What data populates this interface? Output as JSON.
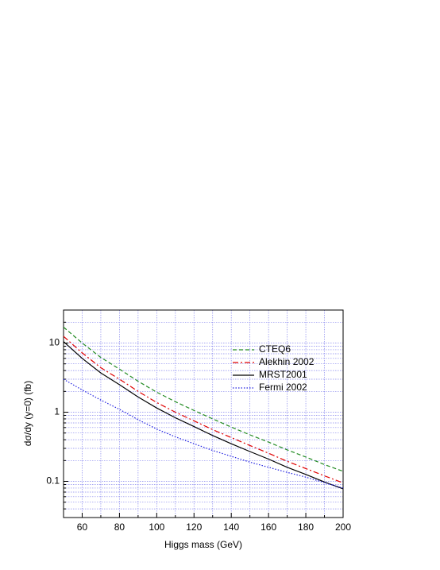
{
  "chart_data": {
    "type": "line",
    "xlabel": "Higgs mass (GeV)",
    "ylabel": "dσ/dy (y=0) (fb)",
    "x": [
      50,
      60,
      70,
      80,
      90,
      100,
      110,
      120,
      130,
      140,
      150,
      160,
      170,
      180,
      190,
      200
    ],
    "series": [
      {
        "name": "CTEQ6",
        "color": "#228b22",
        "dash": "dashed",
        "values": [
          17,
          10,
          6.2,
          4.2,
          2.8,
          1.95,
          1.42,
          1.06,
          0.8,
          0.61,
          0.47,
          0.37,
          0.285,
          0.225,
          0.175,
          0.14
        ]
      },
      {
        "name": "Alekhin 2002",
        "color": "#e00000",
        "dash": "dashdot",
        "values": [
          12.5,
          7.2,
          4.4,
          3.0,
          2.0,
          1.38,
          1.0,
          0.75,
          0.56,
          0.43,
          0.33,
          0.255,
          0.195,
          0.153,
          0.12,
          0.095
        ]
      },
      {
        "name": "MRST2001",
        "color": "#000000",
        "dash": "solid",
        "values": [
          10.5,
          6.0,
          3.7,
          2.5,
          1.66,
          1.15,
          0.83,
          0.62,
          0.46,
          0.35,
          0.27,
          0.21,
          0.16,
          0.126,
          0.098,
          0.078
        ]
      },
      {
        "name": "Fermi 2002",
        "color": "#2020e0",
        "dash": "dotted",
        "values": [
          3.0,
          2.1,
          1.5,
          1.1,
          0.78,
          0.57,
          0.44,
          0.35,
          0.28,
          0.23,
          0.19,
          0.16,
          0.135,
          0.115,
          0.096,
          0.08
        ]
      }
    ],
    "xlim": [
      50,
      200
    ],
    "xticks": [
      60,
      80,
      100,
      120,
      140,
      160,
      180,
      200
    ],
    "xminorticks": [
      50,
      70,
      90,
      110,
      130,
      150,
      170,
      190
    ],
    "ylim": [
      0.03,
      30
    ],
    "yticks": [
      0.1,
      1,
      10
    ],
    "yminorticks": [
      0.03,
      0.04,
      0.05,
      0.06,
      0.07,
      0.08,
      0.09,
      0.2,
      0.3,
      0.4,
      0.5,
      0.6,
      0.7,
      0.8,
      0.9,
      2,
      3,
      4,
      5,
      6,
      7,
      8,
      9,
      20,
      30
    ],
    "log_y": true,
    "grid": true,
    "legend": "upper right"
  }
}
